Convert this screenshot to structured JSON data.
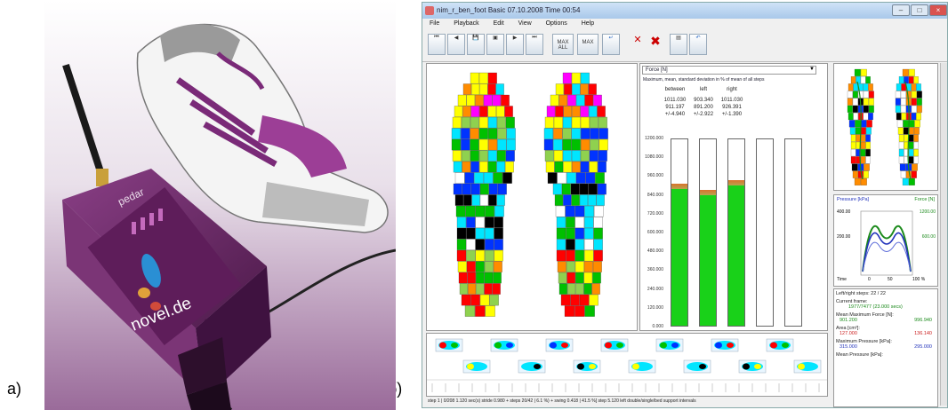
{
  "captions": {
    "left": "а)",
    "right": "б)"
  },
  "device": {
    "brand_label": "pedar",
    "website_label": "novel.de"
  },
  "window": {
    "title": "nim_r_ben_foot Basic 07.10.2008 Time 00:54",
    "buttons": {
      "minimize": "–",
      "maximize": "□",
      "close": "×"
    }
  },
  "menu": [
    "File",
    "Playback",
    "Edit",
    "View",
    "Options",
    "Help"
  ],
  "toolbar": {
    "max_all_label": "MAX ALL",
    "max_label": "MAX"
  },
  "force_panel": {
    "selector_value": "Force [N]",
    "subtitle": "Maximum, mean, standard deviation in % of mean of all steps",
    "columns": [
      {
        "name": "between",
        "max": "1011.030",
        "mean": "911.197",
        "sd": "+/-4.940"
      },
      {
        "name": "left",
        "max": "903.340",
        "mean": "891.200",
        "sd": "+/-2.922"
      },
      {
        "name": "right",
        "max": "1011.030",
        "mean": "926.391",
        "sd": "+/-1.390"
      }
    ],
    "ticks": [
      "1200.000",
      "1080.000",
      "960.000",
      "840.000",
      "720.000",
      "600.000",
      "480.000",
      "360.000",
      "240.000",
      "120.000",
      "0.000"
    ],
    "bar_levels": [
      0.76,
      0.73,
      0.78,
      0,
      0
    ]
  },
  "pressure_panel": {
    "left_title": "Pressure [kPa]",
    "right_title": "Force [N]",
    "y_left_ticks": [
      "400.00",
      "200.00"
    ],
    "y_right_ticks": [
      "1200.00",
      "600.00"
    ],
    "x_ticks": [
      "Time",
      "0",
      "50",
      "100 %"
    ]
  },
  "info_panel": {
    "header": "Left/right steps: 22 / 22",
    "current_frame": {
      "label": "Current frame:",
      "value": "1977/7477 (23.000 secs)"
    },
    "mean_max_force": {
      "label": "Mean Maximum Force [N]:",
      "left": "901.200",
      "right": "996.940"
    },
    "area": {
      "label": "Area [cm²]:",
      "left": "127.000",
      "right": "136.140"
    },
    "max_pressure": {
      "label": "Maximum Pressure [kPa]:",
      "left": "315.000",
      "right": "295.000"
    },
    "mean_pressure": {
      "label": "Mean Pressure [kPa]:"
    }
  },
  "status_bar": {
    "text": "step    1 | 0/208    1.120 sec(s)    stride    0.980 + steps    20/42 | 6.1 %) + swing    0.418 | 41.5 %]    step    5.120    left double/single/bed support intervals"
  }
}
